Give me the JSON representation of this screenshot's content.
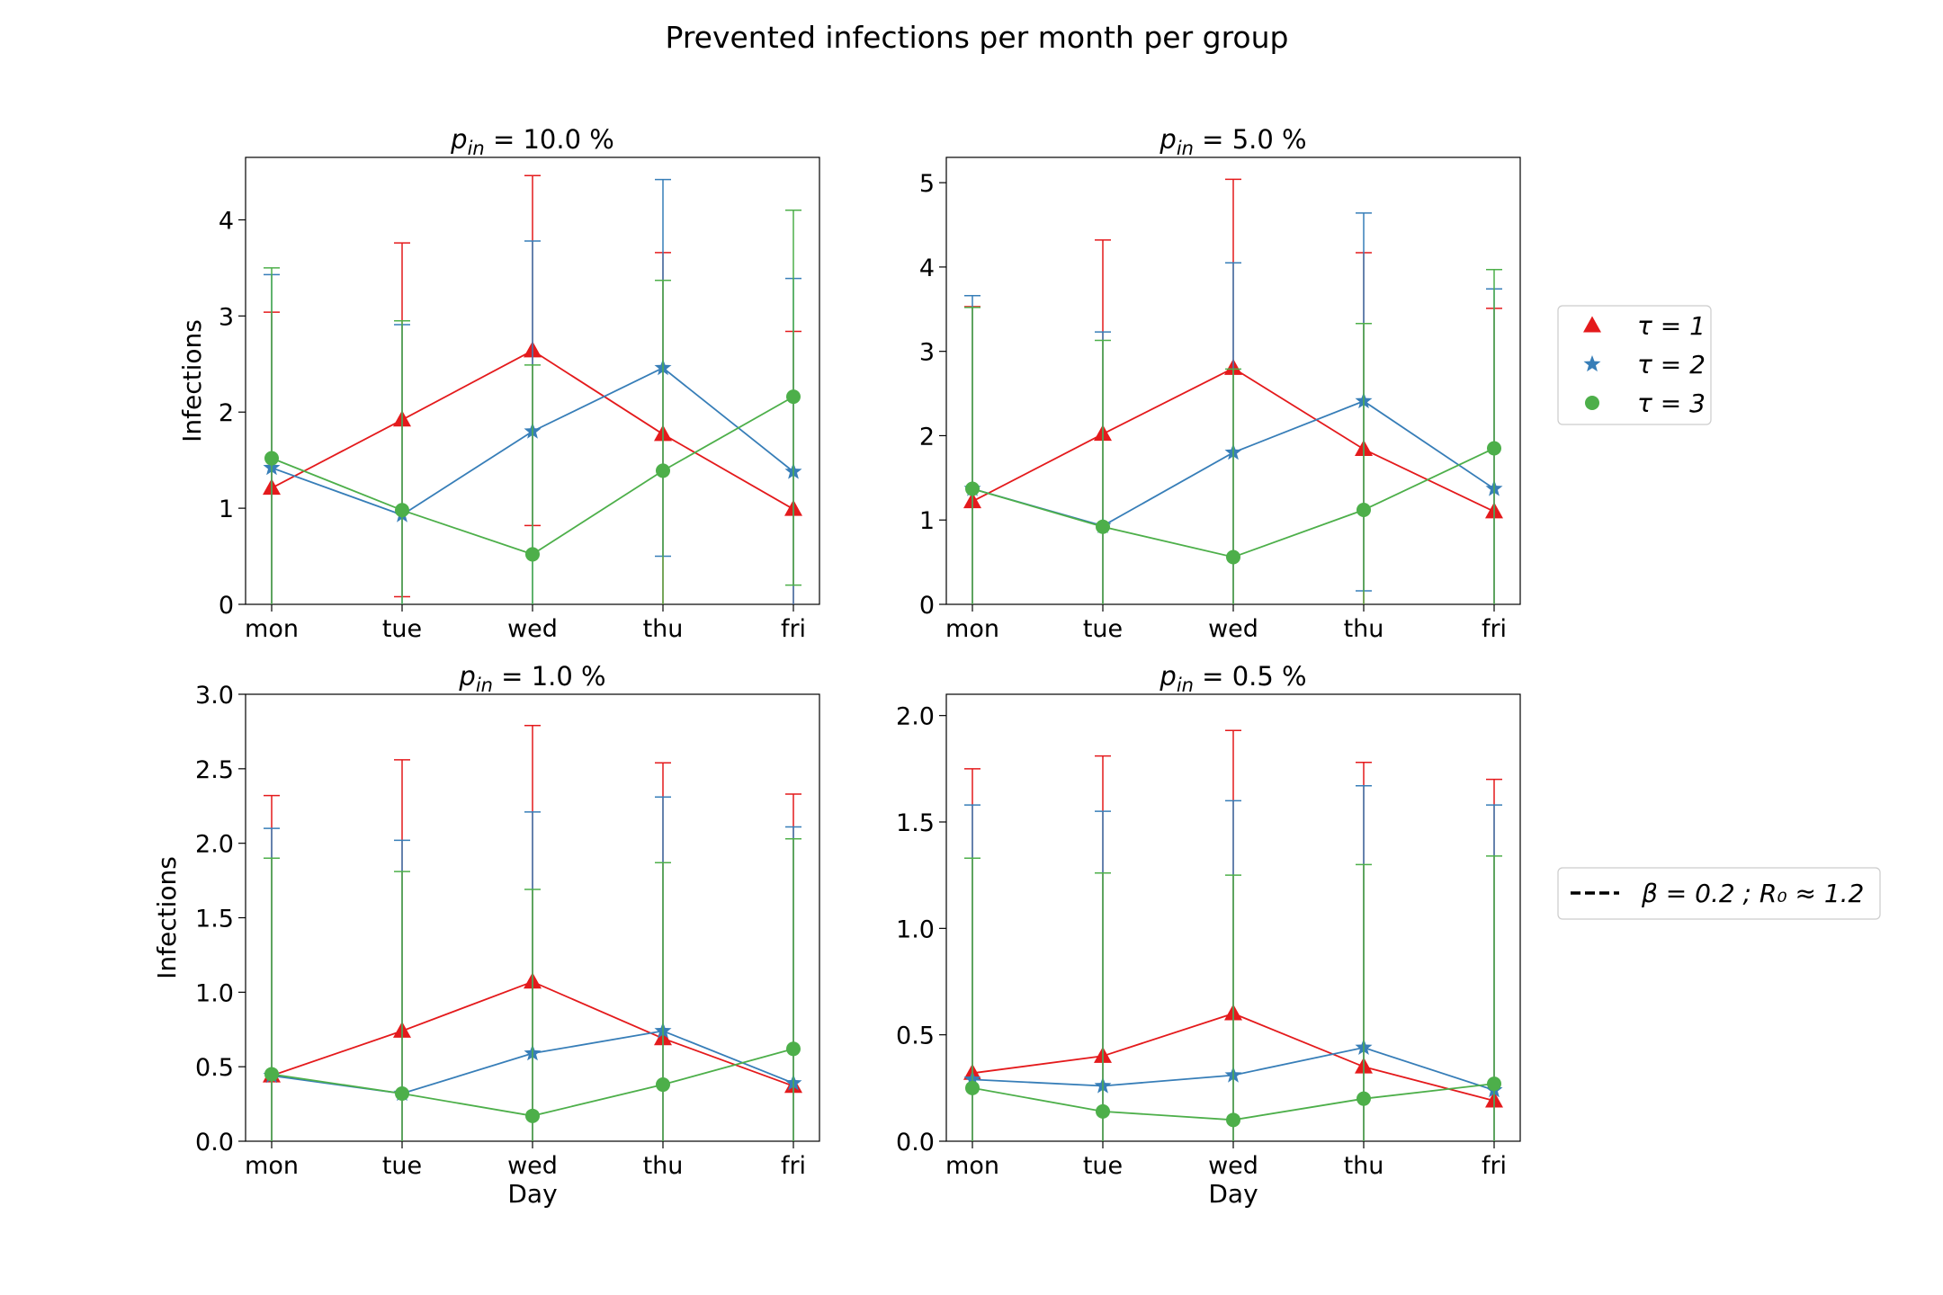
{
  "figure": {
    "title": "Prevented infections per month per group"
  },
  "legend_markers": {
    "entries": [
      {
        "label": "τ = 1",
        "color": "#e41a1c",
        "marker": "triangle"
      },
      {
        "label": "τ = 2",
        "color": "#377eb8",
        "marker": "star"
      },
      {
        "label": "τ = 3",
        "color": "#4daf4a",
        "marker": "circle"
      }
    ]
  },
  "legend_lines": {
    "entries": [
      {
        "label": "β = 0.2 ; R₀ ≈ 1.2",
        "color": "#000000",
        "style": "dashed"
      }
    ]
  },
  "chart_data": [
    {
      "type": "line",
      "title": "p_in = 10.0 %",
      "title_parts": {
        "base": "p",
        "sub": "in",
        "rest": " = 10.0 %"
      },
      "xlabel": "",
      "ylabel": "Infections",
      "categories": [
        "mon",
        "tue",
        "wed",
        "thu",
        "fri"
      ],
      "ylim": [
        0,
        4.65
      ],
      "yticks": [
        "0",
        "1",
        "2",
        "3",
        "4"
      ],
      "ytick_values": [
        0,
        1,
        2,
        3,
        4
      ],
      "series": [
        {
          "name": "τ = 1",
          "color": "#e41a1c",
          "marker": "triangle",
          "values": [
            1.21,
            1.92,
            2.64,
            1.77,
            0.99
          ],
          "err_low": [
            0,
            0.08,
            0.82,
            0,
            0
          ],
          "err_high": [
            3.04,
            3.76,
            4.46,
            3.66,
            2.84
          ]
        },
        {
          "name": "τ = 2",
          "color": "#377eb8",
          "marker": "star",
          "values": [
            1.42,
            0.93,
            1.8,
            2.46,
            1.38
          ],
          "err_low": [
            0,
            0,
            0,
            0.5,
            0
          ],
          "err_high": [
            3.43,
            2.91,
            3.78,
            4.42,
            3.39
          ]
        },
        {
          "name": "τ = 3",
          "color": "#4daf4a",
          "marker": "circle",
          "values": [
            1.52,
            0.98,
            0.52,
            1.39,
            2.16
          ],
          "err_low": [
            0,
            0,
            0,
            0,
            0.2
          ],
          "err_high": [
            3.5,
            2.95,
            2.49,
            3.37,
            4.1
          ]
        }
      ]
    },
    {
      "type": "line",
      "title": "p_in = 5.0 %",
      "title_parts": {
        "base": "p",
        "sub": "in",
        "rest": " = 5.0 %"
      },
      "xlabel": "",
      "ylabel": "",
      "categories": [
        "mon",
        "tue",
        "wed",
        "thu",
        "fri"
      ],
      "ylim": [
        0,
        5.3
      ],
      "yticks": [
        "0",
        "1",
        "2",
        "3",
        "4",
        "5"
      ],
      "ytick_values": [
        0,
        1,
        2,
        3,
        4,
        5
      ],
      "series": [
        {
          "name": "τ = 1",
          "color": "#e41a1c",
          "marker": "triangle",
          "values": [
            1.22,
            2.02,
            2.8,
            1.84,
            1.1
          ],
          "err_low": [
            0,
            0,
            0,
            0,
            0
          ],
          "err_high": [
            3.53,
            4.32,
            5.04,
            4.17,
            3.51
          ]
        },
        {
          "name": "τ = 2",
          "color": "#377eb8",
          "marker": "star",
          "values": [
            1.37,
            0.93,
            1.8,
            2.41,
            1.37
          ],
          "err_low": [
            0,
            0,
            0,
            0.16,
            0
          ],
          "err_high": [
            3.66,
            3.23,
            4.05,
            4.64,
            3.74
          ]
        },
        {
          "name": "τ = 3",
          "color": "#4daf4a",
          "marker": "circle",
          "values": [
            1.37,
            0.92,
            0.56,
            1.12,
            1.85
          ],
          "err_low": [
            0,
            0,
            0,
            0,
            0
          ],
          "err_high": [
            3.52,
            3.13,
            2.79,
            3.33,
            3.97
          ]
        }
      ]
    },
    {
      "type": "line",
      "title": "p_in = 1.0 %",
      "title_parts": {
        "base": "p",
        "sub": "in",
        "rest": " = 1.0 %"
      },
      "xlabel": "Day",
      "ylabel": "Infections",
      "categories": [
        "mon",
        "tue",
        "wed",
        "thu",
        "fri"
      ],
      "ylim": [
        0,
        3.0
      ],
      "yticks": [
        "0.0",
        "0.5",
        "1.0",
        "1.5",
        "2.0",
        "2.5",
        "3.0"
      ],
      "ytick_values": [
        0,
        0.5,
        1.0,
        1.5,
        2.0,
        2.5,
        3.0
      ],
      "series": [
        {
          "name": "τ = 1",
          "color": "#e41a1c",
          "marker": "triangle",
          "values": [
            0.44,
            0.74,
            1.07,
            0.69,
            0.37
          ],
          "err_low": [
            0,
            0,
            0,
            0,
            0
          ],
          "err_high": [
            2.32,
            2.56,
            2.79,
            2.54,
            2.33
          ]
        },
        {
          "name": "τ = 2",
          "color": "#377eb8",
          "marker": "star",
          "values": [
            0.44,
            0.32,
            0.59,
            0.74,
            0.39
          ],
          "err_low": [
            0,
            0,
            0,
            0,
            0
          ],
          "err_high": [
            2.1,
            2.02,
            2.21,
            2.31,
            2.11
          ]
        },
        {
          "name": "τ = 3",
          "color": "#4daf4a",
          "marker": "circle",
          "values": [
            0.45,
            0.32,
            0.17,
            0.38,
            0.62
          ],
          "err_low": [
            0,
            0,
            0,
            0,
            0
          ],
          "err_high": [
            1.9,
            1.81,
            1.69,
            1.87,
            2.03
          ]
        }
      ]
    },
    {
      "type": "line",
      "title": "p_in = 0.5 %",
      "title_parts": {
        "base": "p",
        "sub": "in",
        "rest": " = 0.5 %"
      },
      "xlabel": "Day",
      "ylabel": "",
      "categories": [
        "mon",
        "tue",
        "wed",
        "thu",
        "fri"
      ],
      "ylim": [
        0,
        2.1
      ],
      "yticks": [
        "0.0",
        "0.5",
        "1.0",
        "1.5",
        "2.0"
      ],
      "ytick_values": [
        0,
        0.5,
        1.0,
        1.5,
        2.0
      ],
      "series": [
        {
          "name": "τ = 1",
          "color": "#e41a1c",
          "marker": "triangle",
          "values": [
            0.32,
            0.4,
            0.6,
            0.35,
            0.19
          ],
          "err_low": [
            0,
            0,
            0,
            0,
            0
          ],
          "err_high": [
            1.75,
            1.81,
            1.93,
            1.78,
            1.7
          ]
        },
        {
          "name": "τ = 2",
          "color": "#377eb8",
          "marker": "star",
          "values": [
            0.29,
            0.26,
            0.31,
            0.44,
            0.24
          ],
          "err_low": [
            0,
            0,
            0,
            0,
            0
          ],
          "err_high": [
            1.58,
            1.55,
            1.6,
            1.67,
            1.58
          ]
        },
        {
          "name": "τ = 3",
          "color": "#4daf4a",
          "marker": "circle",
          "values": [
            0.25,
            0.14,
            0.1,
            0.2,
            0.27
          ],
          "err_low": [
            0,
            0,
            0,
            0,
            0
          ],
          "err_high": [
            1.33,
            1.26,
            1.25,
            1.3,
            1.34
          ]
        }
      ]
    }
  ]
}
